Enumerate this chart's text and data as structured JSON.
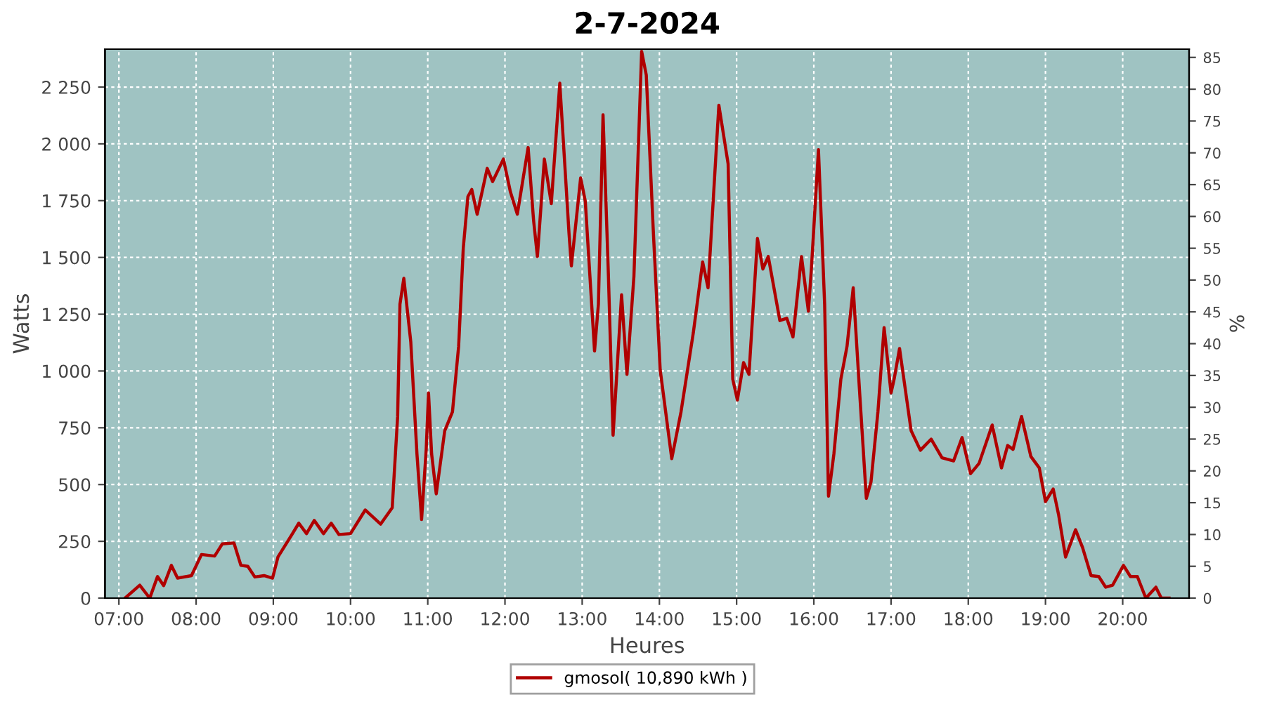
{
  "chart_data": {
    "type": "line",
    "title": "2-7-2024",
    "xlabel": "Heures",
    "ylabel": "Watts",
    "y2label": "%",
    "xlim": [
      6.82,
      20.86
    ],
    "ylim": [
      0,
      2417
    ],
    "y2lim": [
      0,
      86.3
    ],
    "xticks": [
      {
        "value": 7,
        "label": "07:00"
      },
      {
        "value": 8,
        "label": "08:00"
      },
      {
        "value": 9,
        "label": "09:00"
      },
      {
        "value": 10,
        "label": "10:00"
      },
      {
        "value": 11,
        "label": "11:00"
      },
      {
        "value": 12,
        "label": "12:00"
      },
      {
        "value": 13,
        "label": "13:00"
      },
      {
        "value": 14,
        "label": "14:00"
      },
      {
        "value": 15,
        "label": "15:00"
      },
      {
        "value": 16,
        "label": "16:00"
      },
      {
        "value": 17,
        "label": "17:00"
      },
      {
        "value": 18,
        "label": "18:00"
      },
      {
        "value": 19,
        "label": "19:00"
      },
      {
        "value": 20,
        "label": "20:00"
      }
    ],
    "yticks": [
      0,
      250,
      500,
      750,
      {
        "value": 1000,
        "label": "1 000"
      },
      {
        "value": 1250,
        "label": "1 250"
      },
      {
        "value": 1500,
        "label": "1 500"
      },
      {
        "value": 1750,
        "label": "1 750"
      },
      {
        "value": 2000,
        "label": "2 000"
      },
      {
        "value": 2250,
        "label": "2 250"
      }
    ],
    "y2ticks": [
      0,
      5,
      10,
      15,
      20,
      25,
      30,
      35,
      40,
      45,
      50,
      55,
      60,
      65,
      70,
      75,
      80,
      85
    ],
    "grid": true,
    "legend": "bottom",
    "marker": "none",
    "line_style": "solid",
    "series": [
      {
        "name": "gmosol( 10,890 kWh )",
        "color": "#b00000",
        "x": [
          7.08,
          7.27,
          7.4,
          7.5,
          7.58,
          7.68,
          7.76,
          7.94,
          8.07,
          8.24,
          8.34,
          8.49,
          8.58,
          8.67,
          8.76,
          8.88,
          8.99,
          9.06,
          9.23,
          9.33,
          9.43,
          9.53,
          9.65,
          9.75,
          9.85,
          10.0,
          10.19,
          10.39,
          10.54,
          10.61,
          10.64,
          10.69,
          10.78,
          10.86,
          10.92,
          10.98,
          11.01,
          11.05,
          11.11,
          11.22,
          11.32,
          11.4,
          11.46,
          11.52,
          11.57,
          11.64,
          11.77,
          11.84,
          11.98,
          12.07,
          12.16,
          12.3,
          12.37,
          12.42,
          12.51,
          12.6,
          12.71,
          12.83,
          12.86,
          12.98,
          13.04,
          13.16,
          13.21,
          13.27,
          13.34,
          13.4,
          13.51,
          13.58,
          13.67,
          13.77,
          13.83,
          13.92,
          14.01,
          14.16,
          14.28,
          14.44,
          14.56,
          14.63,
          14.77,
          14.89,
          14.95,
          15.01,
          15.09,
          15.16,
          15.27,
          15.34,
          15.41,
          15.56,
          15.65,
          15.73,
          15.84,
          15.93,
          15.97,
          16.06,
          16.14,
          16.19,
          16.26,
          16.35,
          16.43,
          16.51,
          16.59,
          16.68,
          16.74,
          16.83,
          16.91,
          17.0,
          17.04,
          17.11,
          17.26,
          17.38,
          17.52,
          17.66,
          17.81,
          17.92,
          18.03,
          18.14,
          18.31,
          18.43,
          18.51,
          18.58,
          18.69,
          18.81,
          18.92,
          19.0,
          19.1,
          19.17,
          19.26,
          19.39,
          19.48,
          19.59,
          19.69,
          19.78,
          19.87,
          20.01,
          20.1,
          20.19,
          20.3,
          20.43,
          20.5,
          20.6
        ],
        "values": [
          0,
          57,
          0,
          95,
          55,
          144,
          88,
          99,
          192,
          185,
          239,
          243,
          144,
          140,
          93,
          99,
          88,
          181,
          274,
          330,
          284,
          342,
          284,
          330,
          280,
          284,
          388,
          326,
          398,
          800,
          1294,
          1408,
          1129,
          635,
          346,
          655,
          903,
          635,
          459,
          737,
          820,
          1109,
          1541,
          1768,
          1799,
          1690,
          1892,
          1834,
          1933,
          1789,
          1690,
          1984,
          1665,
          1504,
          1933,
          1737,
          2267,
          1603,
          1463,
          1850,
          1748,
          1088,
          1294,
          2128,
          1417,
          717,
          1335,
          985,
          1417,
          2407,
          2303,
          1624,
          1006,
          614,
          820,
          1170,
          1480,
          1366,
          2170,
          1912,
          964,
          872,
          1037,
          985,
          1583,
          1449,
          1504,
          1222,
          1232,
          1150,
          1504,
          1263,
          1459,
          1974,
          1294,
          449,
          635,
          964,
          1109,
          1366,
          923,
          439,
          511,
          820,
          1191,
          903,
          964,
          1099,
          737,
          651,
          700,
          618,
          604,
          707,
          548,
          593,
          762,
          573,
          672,
          655,
          800,
          624,
          573,
          425,
          480,
          367,
          181,
          301,
          223,
          99,
          95,
          48,
          57,
          144,
          95,
          95,
          0,
          48,
          0,
          0
        ]
      }
    ]
  }
}
